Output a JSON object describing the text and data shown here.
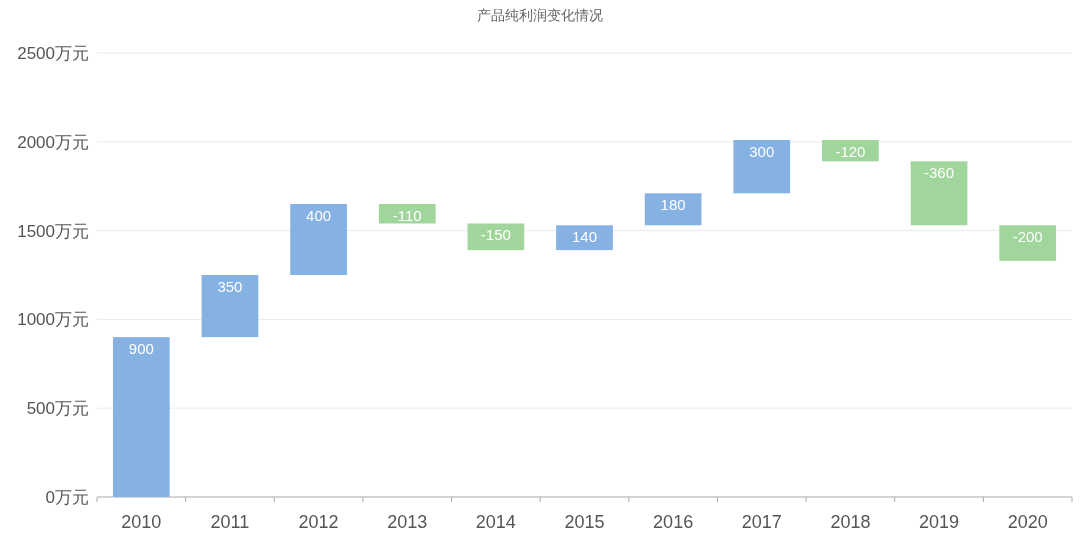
{
  "chart_data": {
    "type": "bar",
    "title": "产品纯利润变化情况",
    "categories": [
      "2010",
      "2011",
      "2012",
      "2013",
      "2014",
      "2015",
      "2016",
      "2017",
      "2018",
      "2019",
      "2020"
    ],
    "values": [
      900,
      350,
      400,
      -110,
      -150,
      140,
      180,
      300,
      -120,
      -360,
      -200
    ],
    "base": [
      0,
      900,
      1250,
      1650,
      1540,
      1390,
      1530,
      1710,
      2010,
      1890,
      1530
    ],
    "colors": [
      "#85b2e3",
      "#85b2e3",
      "#85b2e3",
      "#a0d59b",
      "#a0d59b",
      "#85b2e3",
      "#85b2e3",
      "#85b2e3",
      "#a0d59b",
      "#a0d59b",
      "#a0d59b"
    ],
    "ylim": [
      0,
      2500
    ],
    "yticks": [
      {
        "value": 0,
        "label": "0万元"
      },
      {
        "value": 500,
        "label": "500万元"
      },
      {
        "value": 1000,
        "label": "1000万元"
      },
      {
        "value": 1500,
        "label": "1500万元"
      },
      {
        "value": 2000,
        "label": "2000万元"
      },
      {
        "value": 2500,
        "label": "2500万元"
      }
    ],
    "grid": "y",
    "data_labels": true
  }
}
